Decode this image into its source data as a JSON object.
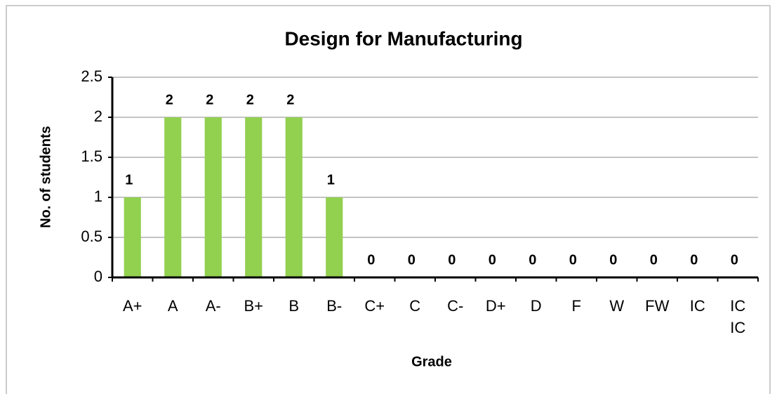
{
  "chart_data": {
    "type": "bar",
    "title": "Design for Manufacturing",
    "x_label": "Grade",
    "y_label": "No. of students",
    "categories": [
      "A+",
      "A",
      "A-",
      "B+",
      "B",
      "B-",
      "C+",
      "C",
      "C-",
      "D+",
      "D",
      "F",
      "W",
      "FW",
      "IC",
      "IC IC"
    ],
    "values": [
      1,
      2,
      2,
      2,
      2,
      1,
      0,
      0,
      0,
      0,
      0,
      0,
      0,
      0,
      0,
      0
    ],
    "color": "#92d050",
    "ylim": [
      0,
      2.5
    ],
    "yticks": [
      0,
      0.5,
      1,
      1.5,
      2,
      2.5
    ],
    "grid": true,
    "data_labels": true
  }
}
